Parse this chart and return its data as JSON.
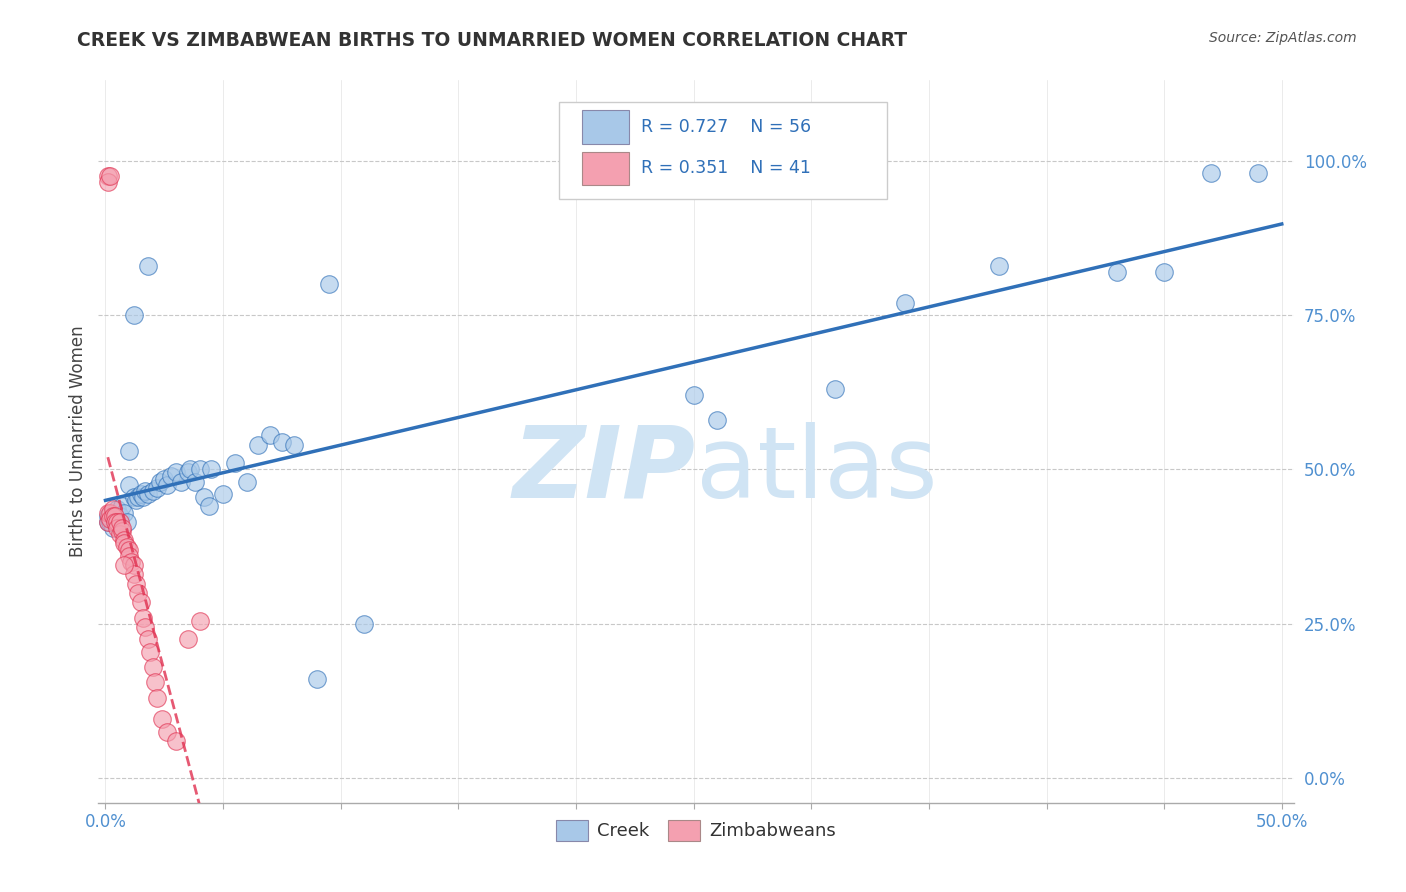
{
  "title": "CREEK VS ZIMBABWEAN BIRTHS TO UNMARRIED WOMEN CORRELATION CHART",
  "source": "Source: ZipAtlas.com",
  "ylabel": "Births to Unmarried Women",
  "xlim": [
    -0.003,
    0.505
  ],
  "ylim": [
    -0.04,
    1.13
  ],
  "xtick_pos": [
    0.0,
    0.05,
    0.1,
    0.15,
    0.2,
    0.25,
    0.3,
    0.35,
    0.4,
    0.45,
    0.5
  ],
  "xtick_labels_edge": {
    "0.0": "0.0%",
    "0.5": "50.0%"
  },
  "ytick_pos": [
    0.0,
    0.25,
    0.5,
    0.75,
    1.0
  ],
  "ytick_labels": [
    "0.0%",
    "25.0%",
    "50.0%",
    "75.0%",
    "100.0%"
  ],
  "creek_R": 0.727,
  "creek_N": 56,
  "zimb_R": 0.351,
  "zimb_N": 41,
  "creek_color": "#a8c8e8",
  "zimb_color": "#f4a0b0",
  "creek_line_color": "#3070b8",
  "zimb_line_color": "#e03050",
  "watermark_zip": "ZIP",
  "watermark_atlas": "atlas",
  "watermark_color": "#d0e4f4",
  "background_color": "#ffffff",
  "grid_color": "#c8c8c8",
  "ytick_color": "#5090d0",
  "xtick_color": "#5090d0",
  "creek_scatter": [
    [
      0.001,
      0.415
    ],
    [
      0.002,
      0.415
    ],
    [
      0.002,
      0.415
    ],
    [
      0.001,
      0.425
    ],
    [
      0.003,
      0.405
    ],
    [
      0.004,
      0.415
    ],
    [
      0.005,
      0.435
    ],
    [
      0.006,
      0.425
    ],
    [
      0.007,
      0.44
    ],
    [
      0.008,
      0.43
    ],
    [
      0.009,
      0.415
    ],
    [
      0.01,
      0.475
    ],
    [
      0.01,
      0.53
    ],
    [
      0.012,
      0.455
    ],
    [
      0.013,
      0.45
    ],
    [
      0.014,
      0.455
    ],
    [
      0.015,
      0.46
    ],
    [
      0.016,
      0.455
    ],
    [
      0.017,
      0.465
    ],
    [
      0.018,
      0.46
    ],
    [
      0.02,
      0.465
    ],
    [
      0.022,
      0.47
    ],
    [
      0.023,
      0.48
    ],
    [
      0.025,
      0.485
    ],
    [
      0.026,
      0.475
    ],
    [
      0.028,
      0.49
    ],
    [
      0.03,
      0.495
    ],
    [
      0.032,
      0.48
    ],
    [
      0.035,
      0.495
    ],
    [
      0.036,
      0.5
    ],
    [
      0.038,
      0.48
    ],
    [
      0.04,
      0.5
    ],
    [
      0.042,
      0.455
    ],
    [
      0.044,
      0.44
    ],
    [
      0.045,
      0.5
    ],
    [
      0.05,
      0.46
    ],
    [
      0.055,
      0.51
    ],
    [
      0.06,
      0.48
    ],
    [
      0.065,
      0.54
    ],
    [
      0.07,
      0.555
    ],
    [
      0.075,
      0.545
    ],
    [
      0.08,
      0.54
    ],
    [
      0.012,
      0.75
    ],
    [
      0.018,
      0.83
    ],
    [
      0.09,
      0.16
    ],
    [
      0.095,
      0.8
    ],
    [
      0.11,
      0.25
    ],
    [
      0.25,
      0.62
    ],
    [
      0.26,
      0.58
    ],
    [
      0.31,
      0.63
    ],
    [
      0.43,
      0.82
    ],
    [
      0.45,
      0.82
    ],
    [
      0.47,
      0.98
    ],
    [
      0.49,
      0.98
    ],
    [
      0.34,
      0.77
    ],
    [
      0.38,
      0.83
    ]
  ],
  "zimb_scatter": [
    [
      0.001,
      0.975
    ],
    [
      0.001,
      0.965
    ],
    [
      0.002,
      0.975
    ],
    [
      0.001,
      0.415
    ],
    [
      0.001,
      0.43
    ],
    [
      0.002,
      0.43
    ],
    [
      0.002,
      0.42
    ],
    [
      0.003,
      0.435
    ],
    [
      0.003,
      0.425
    ],
    [
      0.004,
      0.425
    ],
    [
      0.004,
      0.415
    ],
    [
      0.005,
      0.415
    ],
    [
      0.005,
      0.405
    ],
    [
      0.006,
      0.415
    ],
    [
      0.006,
      0.395
    ],
    [
      0.007,
      0.4
    ],
    [
      0.007,
      0.405
    ],
    [
      0.008,
      0.385
    ],
    [
      0.008,
      0.38
    ],
    [
      0.009,
      0.375
    ],
    [
      0.01,
      0.37
    ],
    [
      0.01,
      0.36
    ],
    [
      0.011,
      0.35
    ],
    [
      0.012,
      0.345
    ],
    [
      0.012,
      0.33
    ],
    [
      0.013,
      0.315
    ],
    [
      0.014,
      0.3
    ],
    [
      0.015,
      0.285
    ],
    [
      0.016,
      0.26
    ],
    [
      0.017,
      0.245
    ],
    [
      0.018,
      0.225
    ],
    [
      0.019,
      0.205
    ],
    [
      0.02,
      0.18
    ],
    [
      0.021,
      0.155
    ],
    [
      0.022,
      0.13
    ],
    [
      0.024,
      0.095
    ],
    [
      0.026,
      0.075
    ],
    [
      0.03,
      0.06
    ],
    [
      0.035,
      0.225
    ],
    [
      0.04,
      0.255
    ],
    [
      0.008,
      0.345
    ]
  ]
}
